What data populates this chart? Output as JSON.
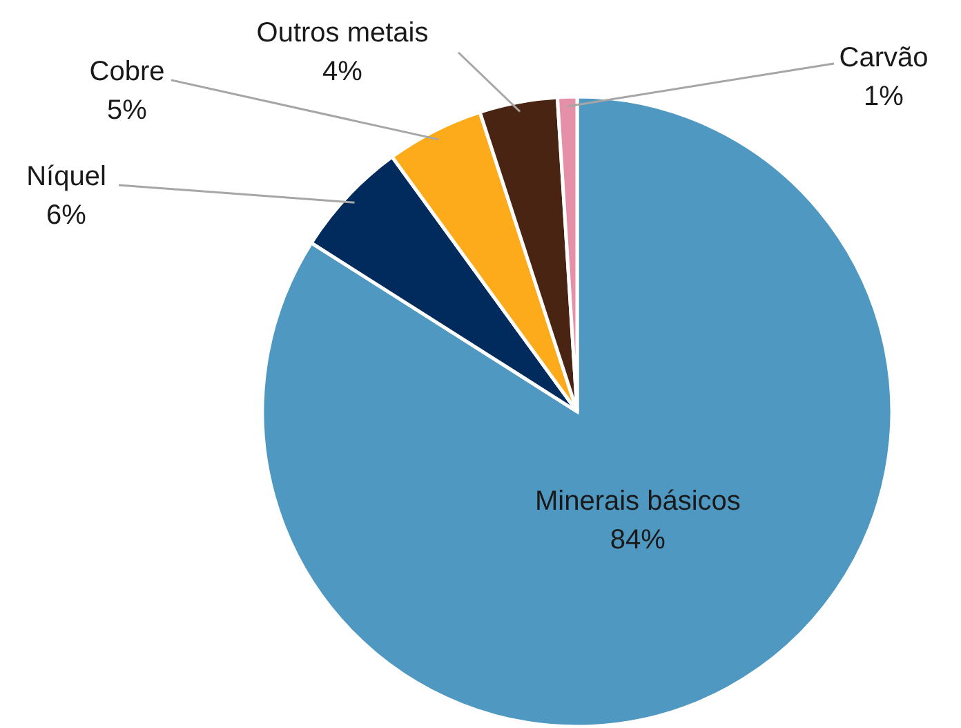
{
  "chart_data": {
    "type": "pie",
    "categories": [
      "Minerais básicos",
      "Níquel",
      "Cobre",
      "Outros metais",
      "Carvão"
    ],
    "values": [
      84,
      6,
      5,
      4,
      1
    ],
    "value_labels": [
      "84%",
      "6%",
      "5%",
      "4%",
      "1%"
    ],
    "colors": [
      "#4e98c2",
      "#002b5c",
      "#fdab1a",
      "#4a2412",
      "#e58fa8"
    ]
  }
}
